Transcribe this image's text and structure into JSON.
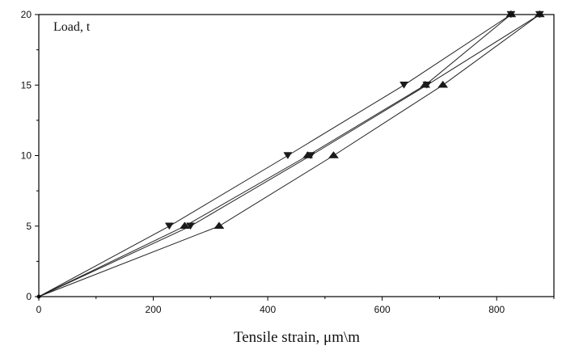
{
  "chart_data": {
    "type": "line",
    "ylabel": "Load, t",
    "xlabel": "Tensile strain, μm\\m",
    "xlim": [
      0,
      900
    ],
    "ylim": [
      0,
      20
    ],
    "x_ticks": [
      0,
      200,
      400,
      600,
      800
    ],
    "y_ticks": [
      0,
      5,
      10,
      15,
      20
    ],
    "x_minor_step": 100,
    "y_minor_step": 2.5,
    "grid": false,
    "legend": "none",
    "series": [
      {
        "marker": "triangle-down",
        "points": [
          [
            0,
            0
          ],
          [
            228,
            5
          ],
          [
            435,
            10
          ],
          [
            638,
            15
          ],
          [
            825,
            20
          ]
        ]
      },
      {
        "marker": "triangle-up",
        "points": [
          [
            825,
            20
          ],
          [
            675,
            15
          ],
          [
            470,
            10
          ],
          [
            255,
            5
          ],
          [
            0,
            0
          ]
        ]
      },
      {
        "marker": "triangle-down",
        "points": [
          [
            0,
            0
          ],
          [
            265,
            5
          ],
          [
            475,
            10
          ],
          [
            678,
            15
          ],
          [
            875,
            20
          ]
        ]
      },
      {
        "marker": "triangle-up",
        "points": [
          [
            875,
            20
          ],
          [
            706,
            15
          ],
          [
            515,
            10
          ],
          [
            315,
            5
          ],
          [
            0,
            0
          ]
        ]
      }
    ],
    "colors": {
      "line": "#222222",
      "marker": "#1a1a1a"
    }
  }
}
